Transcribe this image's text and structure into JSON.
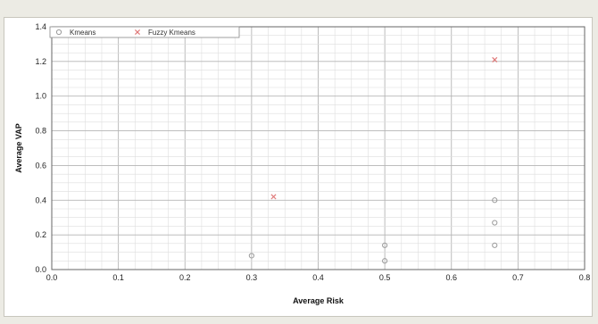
{
  "chart_data": {
    "type": "scatter",
    "title": "",
    "xlabel": "Average Risk",
    "ylabel": "Average VAP",
    "xlim": [
      0.0,
      0.8
    ],
    "ylim": [
      0.0,
      1.4
    ],
    "x_ticks": [
      "0.0",
      "0.1",
      "0.2",
      "0.3",
      "0.4",
      "0.5",
      "0.6",
      "0.7",
      "0.8"
    ],
    "y_ticks": [
      "0.0",
      "0.2",
      "0.4",
      "0.6",
      "0.8",
      "1.0",
      "1.2",
      "1.4"
    ],
    "grid": true,
    "legend_position": "top-left",
    "series": [
      {
        "name": "Kmeans",
        "color": "#9a9a9a",
        "marker": "circle",
        "points": [
          {
            "x": 0.3,
            "y": 0.08
          },
          {
            "x": 0.5,
            "y": 0.14
          },
          {
            "x": 0.5,
            "y": 0.05
          },
          {
            "x": 0.665,
            "y": 0.4
          },
          {
            "x": 0.665,
            "y": 0.27
          },
          {
            "x": 0.665,
            "y": 0.14
          }
        ]
      },
      {
        "name": "Fuzzy Kmeans",
        "color": "#e07a7a",
        "marker": "x",
        "points": [
          {
            "x": 0.333,
            "y": 0.42
          },
          {
            "x": 0.665,
            "y": 1.21
          }
        ]
      }
    ]
  }
}
